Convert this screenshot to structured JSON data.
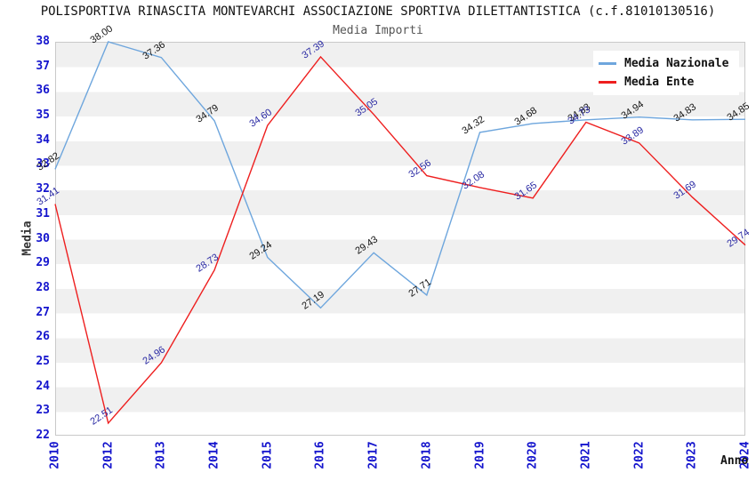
{
  "title": "POLISPORTIVA RINASCITA MONTEVARCHI ASSOCIAZIONE SPORTIVA DILETTANTISTICA (c.f.81010130516)",
  "subtitle": "Media Importi",
  "chart_data": {
    "type": "line",
    "categories": [
      "2010",
      "2012",
      "2013",
      "2014",
      "2015",
      "2016",
      "2017",
      "2018",
      "2019",
      "2020",
      "2021",
      "2022",
      "2023",
      "2024"
    ],
    "series": [
      {
        "name": "Media Nazionale",
        "line_color": "#6ea6dd",
        "label_color": "#141414",
        "values": [
          32.82,
          38.0,
          37.36,
          34.79,
          29.24,
          27.19,
          29.43,
          27.71,
          34.32,
          34.68,
          34.83,
          34.94,
          34.83,
          34.85
        ]
      },
      {
        "name": "Media Ente",
        "line_color": "#ee1f1f",
        "label_color": "#2929a3",
        "values": [
          31.41,
          22.51,
          24.96,
          28.73,
          34.6,
          37.39,
          35.05,
          32.56,
          32.08,
          31.65,
          34.73,
          33.89,
          31.69,
          29.74
        ]
      }
    ],
    "xlabel": "Anno",
    "ylabel": "Media",
    "ylim": [
      22,
      38
    ],
    "y_ticks": [
      38,
      37,
      36,
      35,
      34,
      33,
      32,
      31,
      30,
      29,
      28,
      27,
      26,
      25,
      24,
      23,
      22
    ],
    "grid": "horizontal-bands",
    "legend_position": "top-right"
  },
  "colors": {
    "tick_blue": "#1414cd",
    "band_gray": "#f0f0f0",
    "plot_border": "#c9c9c9",
    "subtitle_gray": "#555555"
  }
}
